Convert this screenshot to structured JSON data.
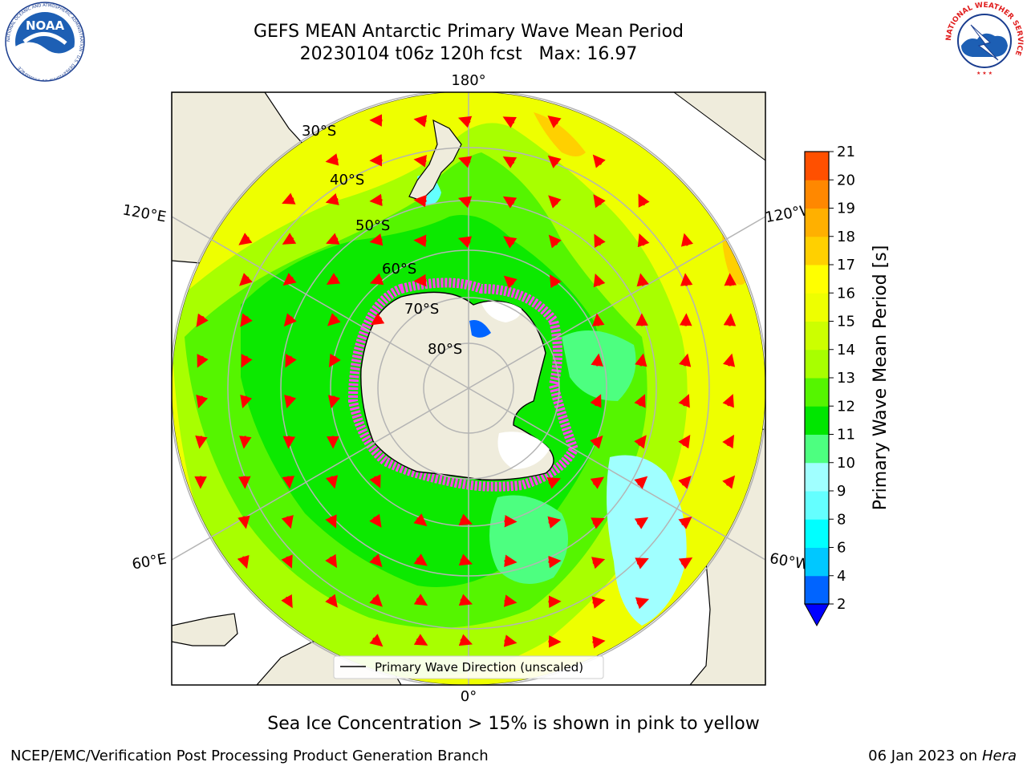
{
  "header": {
    "title_line1": "GEFS MEAN Antarctic Primary Wave Mean Period",
    "title_line2": "20230104 t06z 120h fcst   Max: 16.97"
  },
  "logos": {
    "noaa_text": "NOAA",
    "noaa_ring_text": "NATIONAL OCEANIC AND ATMOSPHERIC ADMINISTRATION · U.S. DEPARTMENT OF COMMERCE",
    "nws_ring_text": "NATIONAL WEATHER SERVICE"
  },
  "map": {
    "projection": "south-polar-stereographic",
    "longitude_labels": {
      "top": "180°",
      "bottom": "0°",
      "left_upper": "120°E",
      "left_lower": "60°E",
      "right_upper": "120°W",
      "right_lower": "60°W"
    },
    "latitude_labels": [
      "30°S",
      "40°S",
      "50°S",
      "60°S",
      "70°S",
      "80°S"
    ],
    "legend_label": "Primary Wave Direction (unscaled)",
    "arrow_color": "#ff0000",
    "land_color": "#efecdc",
    "graticule_color": "#b4b4b4"
  },
  "colorbar": {
    "label": "Primary Wave Mean Period [s]",
    "ticks": [
      "2",
      "4",
      "6",
      "8",
      "9",
      "10",
      "11",
      "12",
      "13",
      "14",
      "15",
      "16",
      "17",
      "18",
      "19",
      "20",
      "21"
    ],
    "colors": [
      "#0064ff",
      "#00c8ff",
      "#00ffff",
      "#64ffff",
      "#a0ffff",
      "#4dff80",
      "#00e600",
      "#55f500",
      "#a8ff00",
      "#ccff00",
      "#eeff00",
      "#ffff00",
      "#ffd000",
      "#ffb000",
      "#ff8800",
      "#ff5000",
      "#ff2000",
      "#ff0000"
    ],
    "extend_min_color": "#0000ff"
  },
  "caption": "Sea Ice Concentration > 15% is shown in pink to yellow",
  "footer": {
    "left": "NCEP/EMC/Verification Post Processing Product Generation Branch",
    "right_prefix": "06 Jan 2023 on ",
    "right_host": "Hera"
  }
}
